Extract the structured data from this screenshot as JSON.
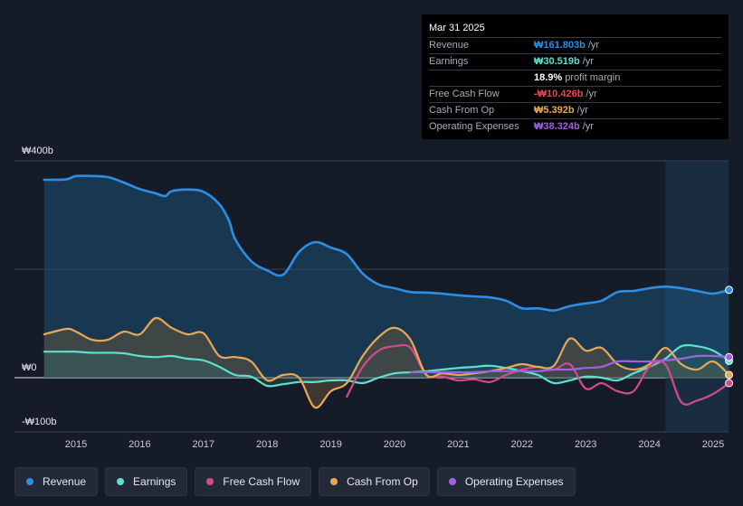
{
  "chart_data": {
    "type": "line",
    "title": "",
    "ylim": [
      -100,
      400
    ],
    "y_ticks": [
      {
        "label": "₩400b",
        "value": 400
      },
      {
        "label": "₩0",
        "value": 0
      },
      {
        "label": "-₩100b",
        "value": -100
      }
    ],
    "x_ticks": [
      2015,
      2016,
      2017,
      2018,
      2019,
      2020,
      2021,
      2022,
      2023,
      2024,
      2025
    ],
    "xlim": [
      2014.5,
      2025.25
    ],
    "forecast_start": 2024.25,
    "series": [
      {
        "name": "Revenue",
        "color": "#2d8fe3",
        "points": [
          [
            2014.5,
            365
          ],
          [
            2014.85,
            366
          ],
          [
            2015.0,
            372
          ],
          [
            2015.25,
            372
          ],
          [
            2015.5,
            370
          ],
          [
            2015.75,
            360
          ],
          [
            2016.0,
            348
          ],
          [
            2016.25,
            340
          ],
          [
            2016.4,
            335
          ],
          [
            2016.5,
            344
          ],
          [
            2016.75,
            347
          ],
          [
            2017.0,
            343
          ],
          [
            2017.25,
            320
          ],
          [
            2017.4,
            290
          ],
          [
            2017.5,
            255
          ],
          [
            2017.75,
            215
          ],
          [
            2018.0,
            198
          ],
          [
            2018.25,
            190
          ],
          [
            2018.5,
            232
          ],
          [
            2018.75,
            250
          ],
          [
            2019.0,
            240
          ],
          [
            2019.25,
            228
          ],
          [
            2019.5,
            192
          ],
          [
            2019.75,
            172
          ],
          [
            2020.0,
            165
          ],
          [
            2020.25,
            158
          ],
          [
            2020.5,
            157
          ],
          [
            2020.75,
            155
          ],
          [
            2021.0,
            152
          ],
          [
            2021.25,
            150
          ],
          [
            2021.5,
            148
          ],
          [
            2021.75,
            142
          ],
          [
            2022.0,
            128
          ],
          [
            2022.25,
            128
          ],
          [
            2022.5,
            124
          ],
          [
            2022.75,
            132
          ],
          [
            2023.0,
            137
          ],
          [
            2023.25,
            142
          ],
          [
            2023.5,
            158
          ],
          [
            2023.75,
            160
          ],
          [
            2024.0,
            165
          ],
          [
            2024.25,
            168
          ],
          [
            2024.5,
            165
          ],
          [
            2024.75,
            160
          ],
          [
            2025.0,
            155
          ],
          [
            2025.25,
            162
          ]
        ]
      },
      {
        "name": "Earnings",
        "color": "#5fe0cf",
        "points": [
          [
            2014.5,
            48
          ],
          [
            2014.85,
            48
          ],
          [
            2015.0,
            48
          ],
          [
            2015.25,
            46
          ],
          [
            2015.5,
            46
          ],
          [
            2015.75,
            45
          ],
          [
            2016.0,
            40
          ],
          [
            2016.25,
            38
          ],
          [
            2016.5,
            40
          ],
          [
            2016.75,
            35
          ],
          [
            2017.0,
            32
          ],
          [
            2017.25,
            20
          ],
          [
            2017.5,
            5
          ],
          [
            2017.75,
            2
          ],
          [
            2018.0,
            -15
          ],
          [
            2018.25,
            -12
          ],
          [
            2018.5,
            -8
          ],
          [
            2018.75,
            -8
          ],
          [
            2019.0,
            -5
          ],
          [
            2019.25,
            -5
          ],
          [
            2019.5,
            -10
          ],
          [
            2019.75,
            0
          ],
          [
            2020.0,
            8
          ],
          [
            2020.25,
            10
          ],
          [
            2020.5,
            12
          ],
          [
            2020.75,
            15
          ],
          [
            2021.0,
            18
          ],
          [
            2021.25,
            20
          ],
          [
            2021.5,
            22
          ],
          [
            2021.75,
            18
          ],
          [
            2022.0,
            12
          ],
          [
            2022.25,
            5
          ],
          [
            2022.5,
            -10
          ],
          [
            2022.75,
            -5
          ],
          [
            2023.0,
            2
          ],
          [
            2023.25,
            0
          ],
          [
            2023.5,
            -5
          ],
          [
            2023.75,
            8
          ],
          [
            2024.0,
            20
          ],
          [
            2024.25,
            35
          ],
          [
            2024.5,
            58
          ],
          [
            2024.75,
            58
          ],
          [
            2025.0,
            50
          ],
          [
            2025.25,
            31
          ]
        ]
      },
      {
        "name": "Free Cash Flow",
        "color": "#d64a8a",
        "points": [
          [
            2019.25,
            -35
          ],
          [
            2019.5,
            20
          ],
          [
            2019.75,
            50
          ],
          [
            2020.0,
            58
          ],
          [
            2020.25,
            55
          ],
          [
            2020.5,
            5
          ],
          [
            2020.75,
            2
          ],
          [
            2021.0,
            -5
          ],
          [
            2021.25,
            -3
          ],
          [
            2021.5,
            -8
          ],
          [
            2021.75,
            5
          ],
          [
            2022.0,
            15
          ],
          [
            2022.25,
            20
          ],
          [
            2022.5,
            15
          ],
          [
            2022.75,
            25
          ],
          [
            2023.0,
            -20
          ],
          [
            2023.25,
            -10
          ],
          [
            2023.5,
            -25
          ],
          [
            2023.75,
            -25
          ],
          [
            2024.0,
            20
          ],
          [
            2024.25,
            25
          ],
          [
            2024.5,
            -45
          ],
          [
            2024.75,
            -42
          ],
          [
            2025.0,
            -30
          ],
          [
            2025.25,
            -10
          ]
        ]
      },
      {
        "name": "Cash From Op",
        "color": "#e8a85a",
        "points": [
          [
            2014.5,
            80
          ],
          [
            2014.85,
            90
          ],
          [
            2015.0,
            85
          ],
          [
            2015.25,
            70
          ],
          [
            2015.5,
            70
          ],
          [
            2015.75,
            85
          ],
          [
            2016.0,
            80
          ],
          [
            2016.25,
            110
          ],
          [
            2016.5,
            92
          ],
          [
            2016.75,
            80
          ],
          [
            2017.0,
            82
          ],
          [
            2017.25,
            40
          ],
          [
            2017.5,
            38
          ],
          [
            2017.75,
            30
          ],
          [
            2018.0,
            -5
          ],
          [
            2018.25,
            5
          ],
          [
            2018.5,
            0
          ],
          [
            2018.75,
            -55
          ],
          [
            2019.0,
            -25
          ],
          [
            2019.25,
            -10
          ],
          [
            2019.5,
            40
          ],
          [
            2019.75,
            75
          ],
          [
            2020.0,
            92
          ],
          [
            2020.25,
            70
          ],
          [
            2020.5,
            5
          ],
          [
            2020.75,
            8
          ],
          [
            2021.0,
            5
          ],
          [
            2021.25,
            8
          ],
          [
            2021.5,
            12
          ],
          [
            2021.75,
            18
          ],
          [
            2022.0,
            25
          ],
          [
            2022.25,
            20
          ],
          [
            2022.5,
            22
          ],
          [
            2022.75,
            72
          ],
          [
            2023.0,
            50
          ],
          [
            2023.25,
            55
          ],
          [
            2023.5,
            25
          ],
          [
            2023.75,
            15
          ],
          [
            2024.0,
            25
          ],
          [
            2024.25,
            55
          ],
          [
            2024.5,
            25
          ],
          [
            2024.75,
            15
          ],
          [
            2025.0,
            30
          ],
          [
            2025.25,
            5
          ]
        ]
      },
      {
        "name": "Operating Expenses",
        "color": "#a160e0",
        "points": [
          [
            2020.25,
            10
          ],
          [
            2020.5,
            10
          ],
          [
            2020.75,
            10
          ],
          [
            2021.0,
            10
          ],
          [
            2021.25,
            10
          ],
          [
            2021.5,
            12
          ],
          [
            2021.75,
            12
          ],
          [
            2022.0,
            12
          ],
          [
            2022.25,
            12
          ],
          [
            2022.5,
            15
          ],
          [
            2022.75,
            15
          ],
          [
            2023.0,
            18
          ],
          [
            2023.25,
            20
          ],
          [
            2023.5,
            30
          ],
          [
            2023.75,
            30
          ],
          [
            2024.0,
            30
          ],
          [
            2024.25,
            32
          ],
          [
            2024.5,
            35
          ],
          [
            2024.75,
            40
          ],
          [
            2025.0,
            40
          ],
          [
            2025.25,
            38
          ]
        ]
      }
    ]
  },
  "tooltip": {
    "date": "Mar 31 2025",
    "rows": [
      {
        "label": "Revenue",
        "value": "₩161.803b",
        "unit": "/yr",
        "color": "#2d8fe3"
      },
      {
        "label": "Earnings",
        "value": "₩30.519b",
        "unit": "/yr",
        "color": "#5fe0cf"
      },
      {
        "label": "",
        "value": "18.9%",
        "unit": "profit margin",
        "color": "#ffffff"
      },
      {
        "label": "Free Cash Flow",
        "value": "-₩10.426b",
        "unit": "/yr",
        "color": "#e8484f"
      },
      {
        "label": "Cash From Op",
        "value": "₩5.392b",
        "unit": "/yr",
        "color": "#e8a85a"
      },
      {
        "label": "Operating Expenses",
        "value": "₩38.324b",
        "unit": "/yr",
        "color": "#a160e0"
      }
    ]
  },
  "legend": [
    {
      "label": "Revenue",
      "color": "#2d8fe3"
    },
    {
      "label": "Earnings",
      "color": "#5fe0cf"
    },
    {
      "label": "Free Cash Flow",
      "color": "#d64a8a"
    },
    {
      "label": "Cash From Op",
      "color": "#e8a85a"
    },
    {
      "label": "Operating Expenses",
      "color": "#a160e0"
    }
  ]
}
